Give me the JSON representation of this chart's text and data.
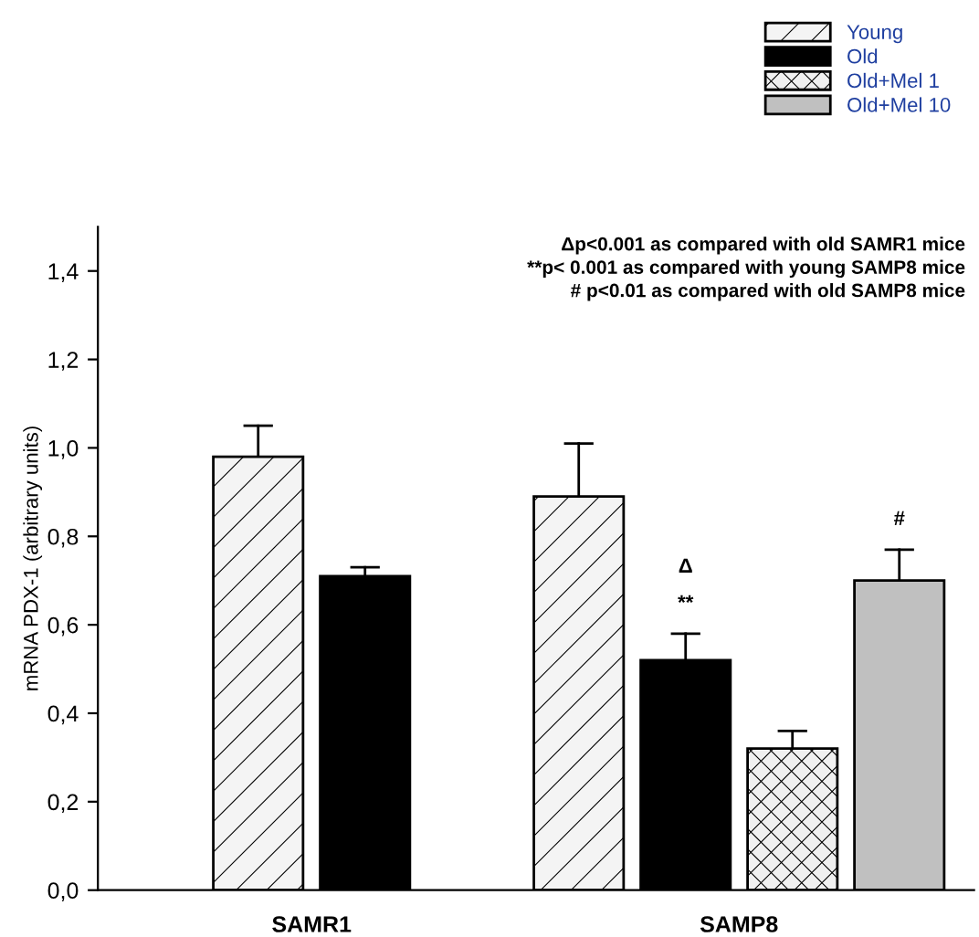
{
  "chart_data": {
    "type": "bar",
    "ylabel": "mRNA PDX-1 (arbitrary units)",
    "categories": [
      "SAMR1",
      "SAMP8"
    ],
    "series": [
      {
        "name": "Young",
        "color": "#f4f4f4",
        "values": [
          0.98,
          0.89
        ],
        "errors": [
          [
            0.98,
            1.05
          ],
          [
            0.89,
            1.01
          ]
        ]
      },
      {
        "name": "Old",
        "color": "#000000",
        "values": [
          0.71,
          0.52
        ],
        "errors": [
          [
            0.71,
            0.73
          ],
          [
            0.52,
            0.58
          ]
        ],
        "value_labels": [
          null,
          "Δ\n**"
        ]
      },
      {
        "name": "Old+Mel 1",
        "color": "#f0f0f0",
        "values": [
          null,
          0.32
        ],
        "errors": [
          null,
          [
            0.32,
            0.36
          ]
        ]
      },
      {
        "name": "Old+Mel 10",
        "color": "#c0c0c0",
        "values": [
          null,
          0.7
        ],
        "errors": [
          null,
          [
            0.7,
            0.77
          ]
        ],
        "value_labels": [
          null,
          "#"
        ]
      }
    ],
    "ylim": [
      0,
      1.5
    ],
    "yticks": [
      {
        "value": 0,
        "label": "0,0"
      },
      {
        "value": 0.2,
        "label": "0,2"
      },
      {
        "value": 0.4,
        "label": "0,4"
      },
      {
        "value": 0.6,
        "label": "0,6"
      },
      {
        "value": 0.8,
        "label": "0,8"
      },
      {
        "value": 1.0,
        "label": "1,0"
      },
      {
        "value": 1.2,
        "label": "1,2"
      },
      {
        "value": 1.4,
        "label": "1,4"
      }
    ],
    "legend": "top right",
    "grid": false,
    "annotations": [
      "Δp<0.001 as compared with old SAMR1 mice",
      "**p< 0.001 as compared with young SAMP8 mice",
      "# p<0.01 as compared with old SAMP8 mice"
    ]
  }
}
